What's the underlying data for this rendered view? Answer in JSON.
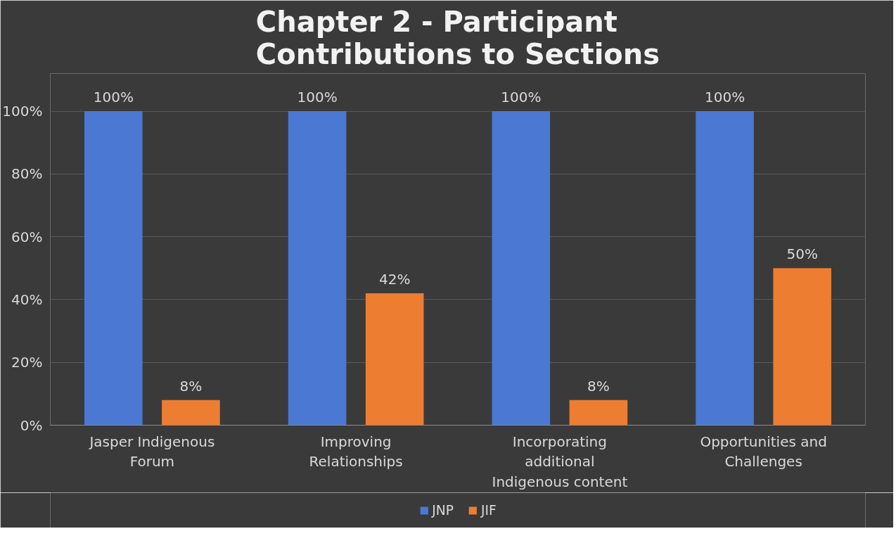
{
  "chart_data": {
    "type": "bar",
    "title": "Chapter 2 - Participant Contributions to Sections",
    "categories": [
      "Jasper Indigenous Forum",
      "Improving Relationships",
      "Incorporating additional Indigenous content",
      "Opportunities and Challenges"
    ],
    "series": [
      {
        "name": "JNP",
        "color": "#4a78d3",
        "values": [
          100,
          100,
          100,
          100
        ],
        "value_labels": [
          "100%",
          "100%",
          "100%",
          "100%"
        ]
      },
      {
        "name": "JIF",
        "color": "#ed7d31",
        "values": [
          8,
          42,
          8,
          50
        ],
        "value_labels": [
          "8%",
          "42%",
          "8%",
          "50%"
        ]
      }
    ],
    "ylim": [
      0,
      112
    ],
    "yticks": [
      {
        "value": 0,
        "label": "0%"
      },
      {
        "value": 20,
        "label": "20%"
      },
      {
        "value": 40,
        "label": "40%"
      },
      {
        "value": 60,
        "label": "60%"
      },
      {
        "value": 80,
        "label": "80%"
      },
      {
        "value": 100,
        "label": "100%"
      }
    ],
    "grid": "y",
    "legend": "bottom"
  }
}
